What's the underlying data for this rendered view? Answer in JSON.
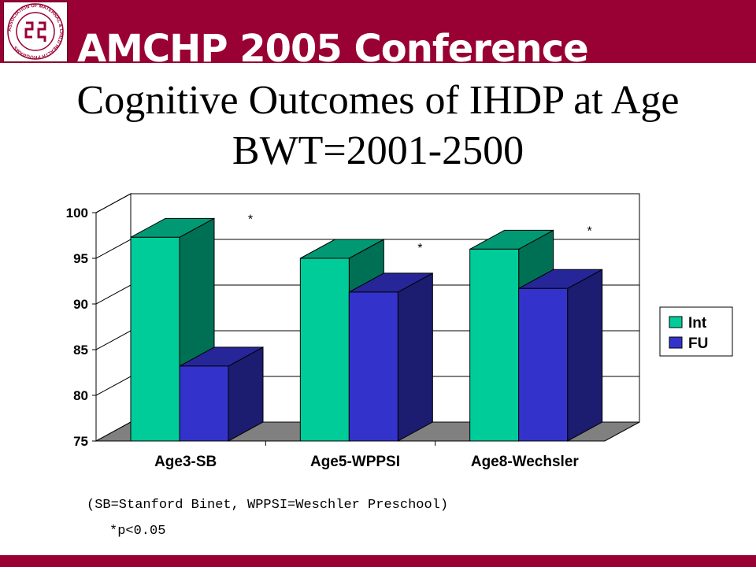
{
  "header": {
    "conference_title": "AMCHP 2005 Conference",
    "logo": {
      "ring_text": "ASSOCIATION OF MATERNAL & CHILD HEALTH PROGRAMS",
      "color": "#990033"
    }
  },
  "slide": {
    "title_line1": "Cognitive Outcomes of IHDP at Age",
    "title_line2": "BWT=2001-2500"
  },
  "chart_data": {
    "type": "bar",
    "categories": [
      "Age3-SB",
      "Age5-WPPSI",
      "Age8-Wechsler"
    ],
    "series": [
      {
        "name": "Int",
        "values": [
          97.3,
          95.0,
          96.0
        ],
        "color": "#00CC99"
      },
      {
        "name": "FU",
        "values": [
          83.2,
          91.3,
          91.7
        ],
        "color": "#3333CC"
      }
    ],
    "ylim": [
      75,
      100
    ],
    "yticks": [
      75,
      80,
      85,
      90,
      95,
      100
    ],
    "grid": true,
    "three_d": true,
    "legend_position": "right",
    "significance_markers": [
      "*",
      "*",
      "*"
    ]
  },
  "notes": {
    "abbreviations": "(SB=Stanford Binet, WPPSI=Weschler Preschool)",
    "significance": "*p<0.05"
  },
  "colors": {
    "band": "#990033",
    "floor": "#808080"
  }
}
